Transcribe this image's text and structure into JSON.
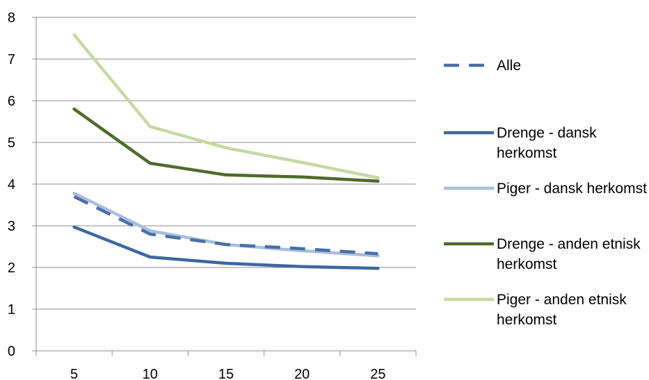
{
  "chart_data": {
    "type": "line",
    "title": "",
    "xlabel": "",
    "ylabel": "",
    "x": [
      5,
      10,
      15,
      20,
      25
    ],
    "categories": [
      "5",
      "10",
      "15",
      "20",
      "25"
    ],
    "ylim": [
      0,
      8
    ],
    "yticks": [
      "0",
      "1",
      "2",
      "3",
      "4",
      "5",
      "6",
      "7",
      "8"
    ],
    "grid": true,
    "legend_position": "right",
    "series": [
      {
        "name": "Alle",
        "color": "#4a6fa5",
        "style": "dashed",
        "values": [
          3.7,
          2.8,
          2.55,
          2.45,
          2.33
        ]
      },
      {
        "name": "Drenge - dansk herkomst",
        "color": "#3d68a0",
        "style": "solid",
        "values": [
          2.97,
          2.25,
          2.1,
          2.02,
          1.98
        ]
      },
      {
        "name": "Piger - dansk herkomst",
        "color": "#a9bedf",
        "style": "solid",
        "values": [
          3.78,
          2.88,
          2.55,
          2.4,
          2.28
        ]
      },
      {
        "name": "Drenge - anden etnisk herkomst",
        "color": "#4f6b2a",
        "style": "solid",
        "values": [
          5.8,
          4.5,
          4.22,
          4.17,
          4.07
        ]
      },
      {
        "name": "Piger - anden etnisk herkomst",
        "color": "#c5d9a0",
        "style": "solid",
        "values": [
          7.58,
          5.38,
          4.87,
          4.52,
          4.15
        ]
      }
    ]
  }
}
